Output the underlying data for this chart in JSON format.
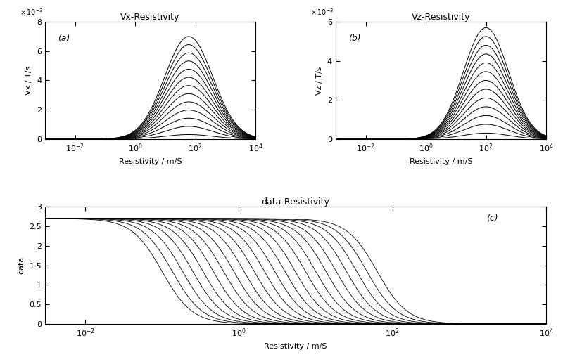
{
  "title_a": "Vx-Resistivity",
  "title_b": "Vz-Resistivity",
  "title_c": "data-Resistivity",
  "xlabel": "Resistivity / m/S",
  "ylabel_a": "Vx / T/s",
  "ylabel_b": "Vz / T/s",
  "ylabel_c": "data",
  "label_a": "(a)",
  "label_b": "(b)",
  "label_c": "(c)",
  "xlim_ab": [
    0.001,
    10000.0
  ],
  "ylim_a": [
    0,
    0.008
  ],
  "ylim_b": [
    0,
    0.006
  ],
  "xlim_c": [
    0.003,
    10000.0
  ],
  "ylim_c": [
    0,
    3.0
  ],
  "yticks_a": [
    0,
    0.002,
    0.004,
    0.006,
    0.008
  ],
  "yticks_b": [
    0,
    0.002,
    0.004,
    0.006
  ],
  "yticks_c": [
    0,
    0.5,
    1.0,
    1.5,
    2.0,
    2.5,
    3.0
  ],
  "n_curves_ab": 13,
  "n_curves_c": 22,
  "peak_resistivity_a": 60,
  "peak_resistivity_b": 100,
  "bg_color": "#ffffff",
  "line_color": "#000000",
  "font_size": 8,
  "title_font_size": 9
}
